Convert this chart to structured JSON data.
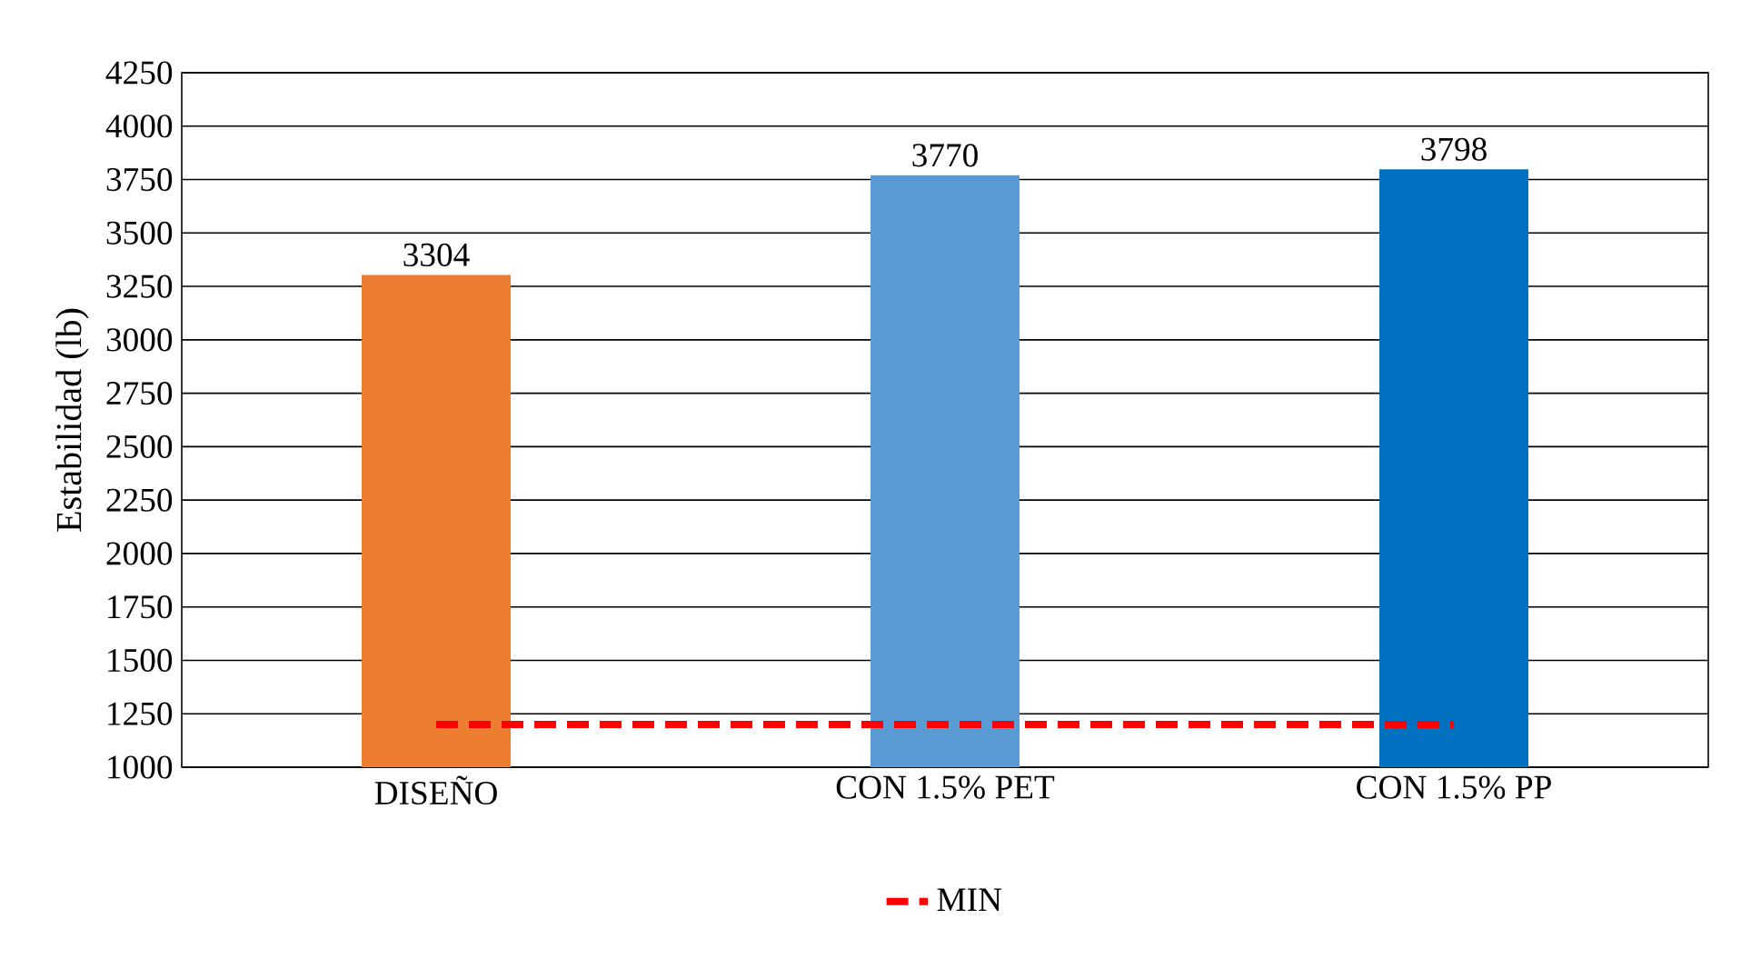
{
  "chart_data": {
    "type": "bar",
    "ylabel": "Estabilidad  (lb)",
    "categories": [
      "DISEÑO",
      "CON  1.5% PET",
      "CON 1.5% PP"
    ],
    "series": [
      {
        "values": [
          3304,
          3770,
          3798
        ],
        "value_labels": [
          "3304",
          "3770",
          "3798"
        ],
        "colors": [
          "#ed7d31",
          "#5b9bd5",
          "#0070c0"
        ]
      },
      {
        "type": "line",
        "name": "MIN",
        "color": "#ff0000",
        "values": [
          1200,
          1200,
          1200
        ],
        "line_style": "dashed"
      }
    ],
    "ylim": [
      1000,
      4250
    ],
    "yticks": [
      1000,
      1250,
      1500,
      1750,
      2000,
      2250,
      2500,
      2750,
      3000,
      3250,
      3500,
      3750,
      4000,
      4250
    ],
    "grid": "y",
    "legend": "bottom",
    "marker": "none"
  }
}
